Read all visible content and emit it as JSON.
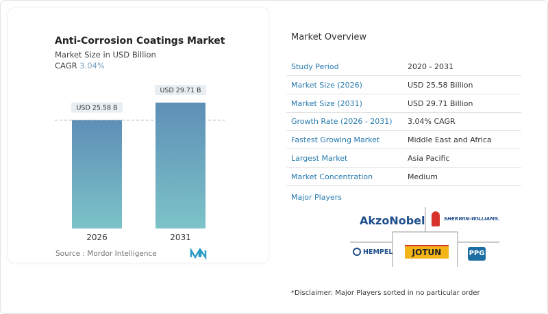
{
  "chart_data": {
    "type": "bar",
    "title": "Anti-Corrosion Coatings Market",
    "subtitle": "Market Size in USD Billion",
    "cagr_label": "CAGR",
    "cagr_value": "3.04%",
    "categories": [
      "2026",
      "2031"
    ],
    "values": [
      25.58,
      29.71
    ],
    "data_labels": [
      "USD 25.58 B",
      "USD 29.71 B"
    ],
    "ylim": [
      0,
      29.71
    ],
    "bar_color_top": "#5e8fb6",
    "bar_color_bottom": "#7cc3c8",
    "reference_line": "dashed at 2026 value",
    "source": "Source :  Mordor Intelligence"
  },
  "overview": {
    "title": "Market Overview",
    "rows": [
      {
        "label": "Study Period",
        "value": "2020 - 2031"
      },
      {
        "label": "Market Size (2026)",
        "value": "USD 25.58 Billion"
      },
      {
        "label": "Market Size (2031)",
        "value": "USD 29.71 Billion"
      },
      {
        "label": "Growth Rate (2026 - 2031)",
        "value": "3.04% CAGR"
      },
      {
        "label": "Fastest Growing Market",
        "value": "Middle East and Africa"
      },
      {
        "label": "Largest Market",
        "value": "Asia Pacific"
      },
      {
        "label": "Market Concentration",
        "value": "Medium"
      }
    ],
    "major_players_label": "Major Players",
    "players": [
      "AkzoNobel",
      "SHERWIN-WILLIAMS.",
      "HEMPEL",
      "JOTUN",
      "PPG"
    ],
    "disclaimer": "*Disclaimer: Major Players sorted in no particular order"
  }
}
